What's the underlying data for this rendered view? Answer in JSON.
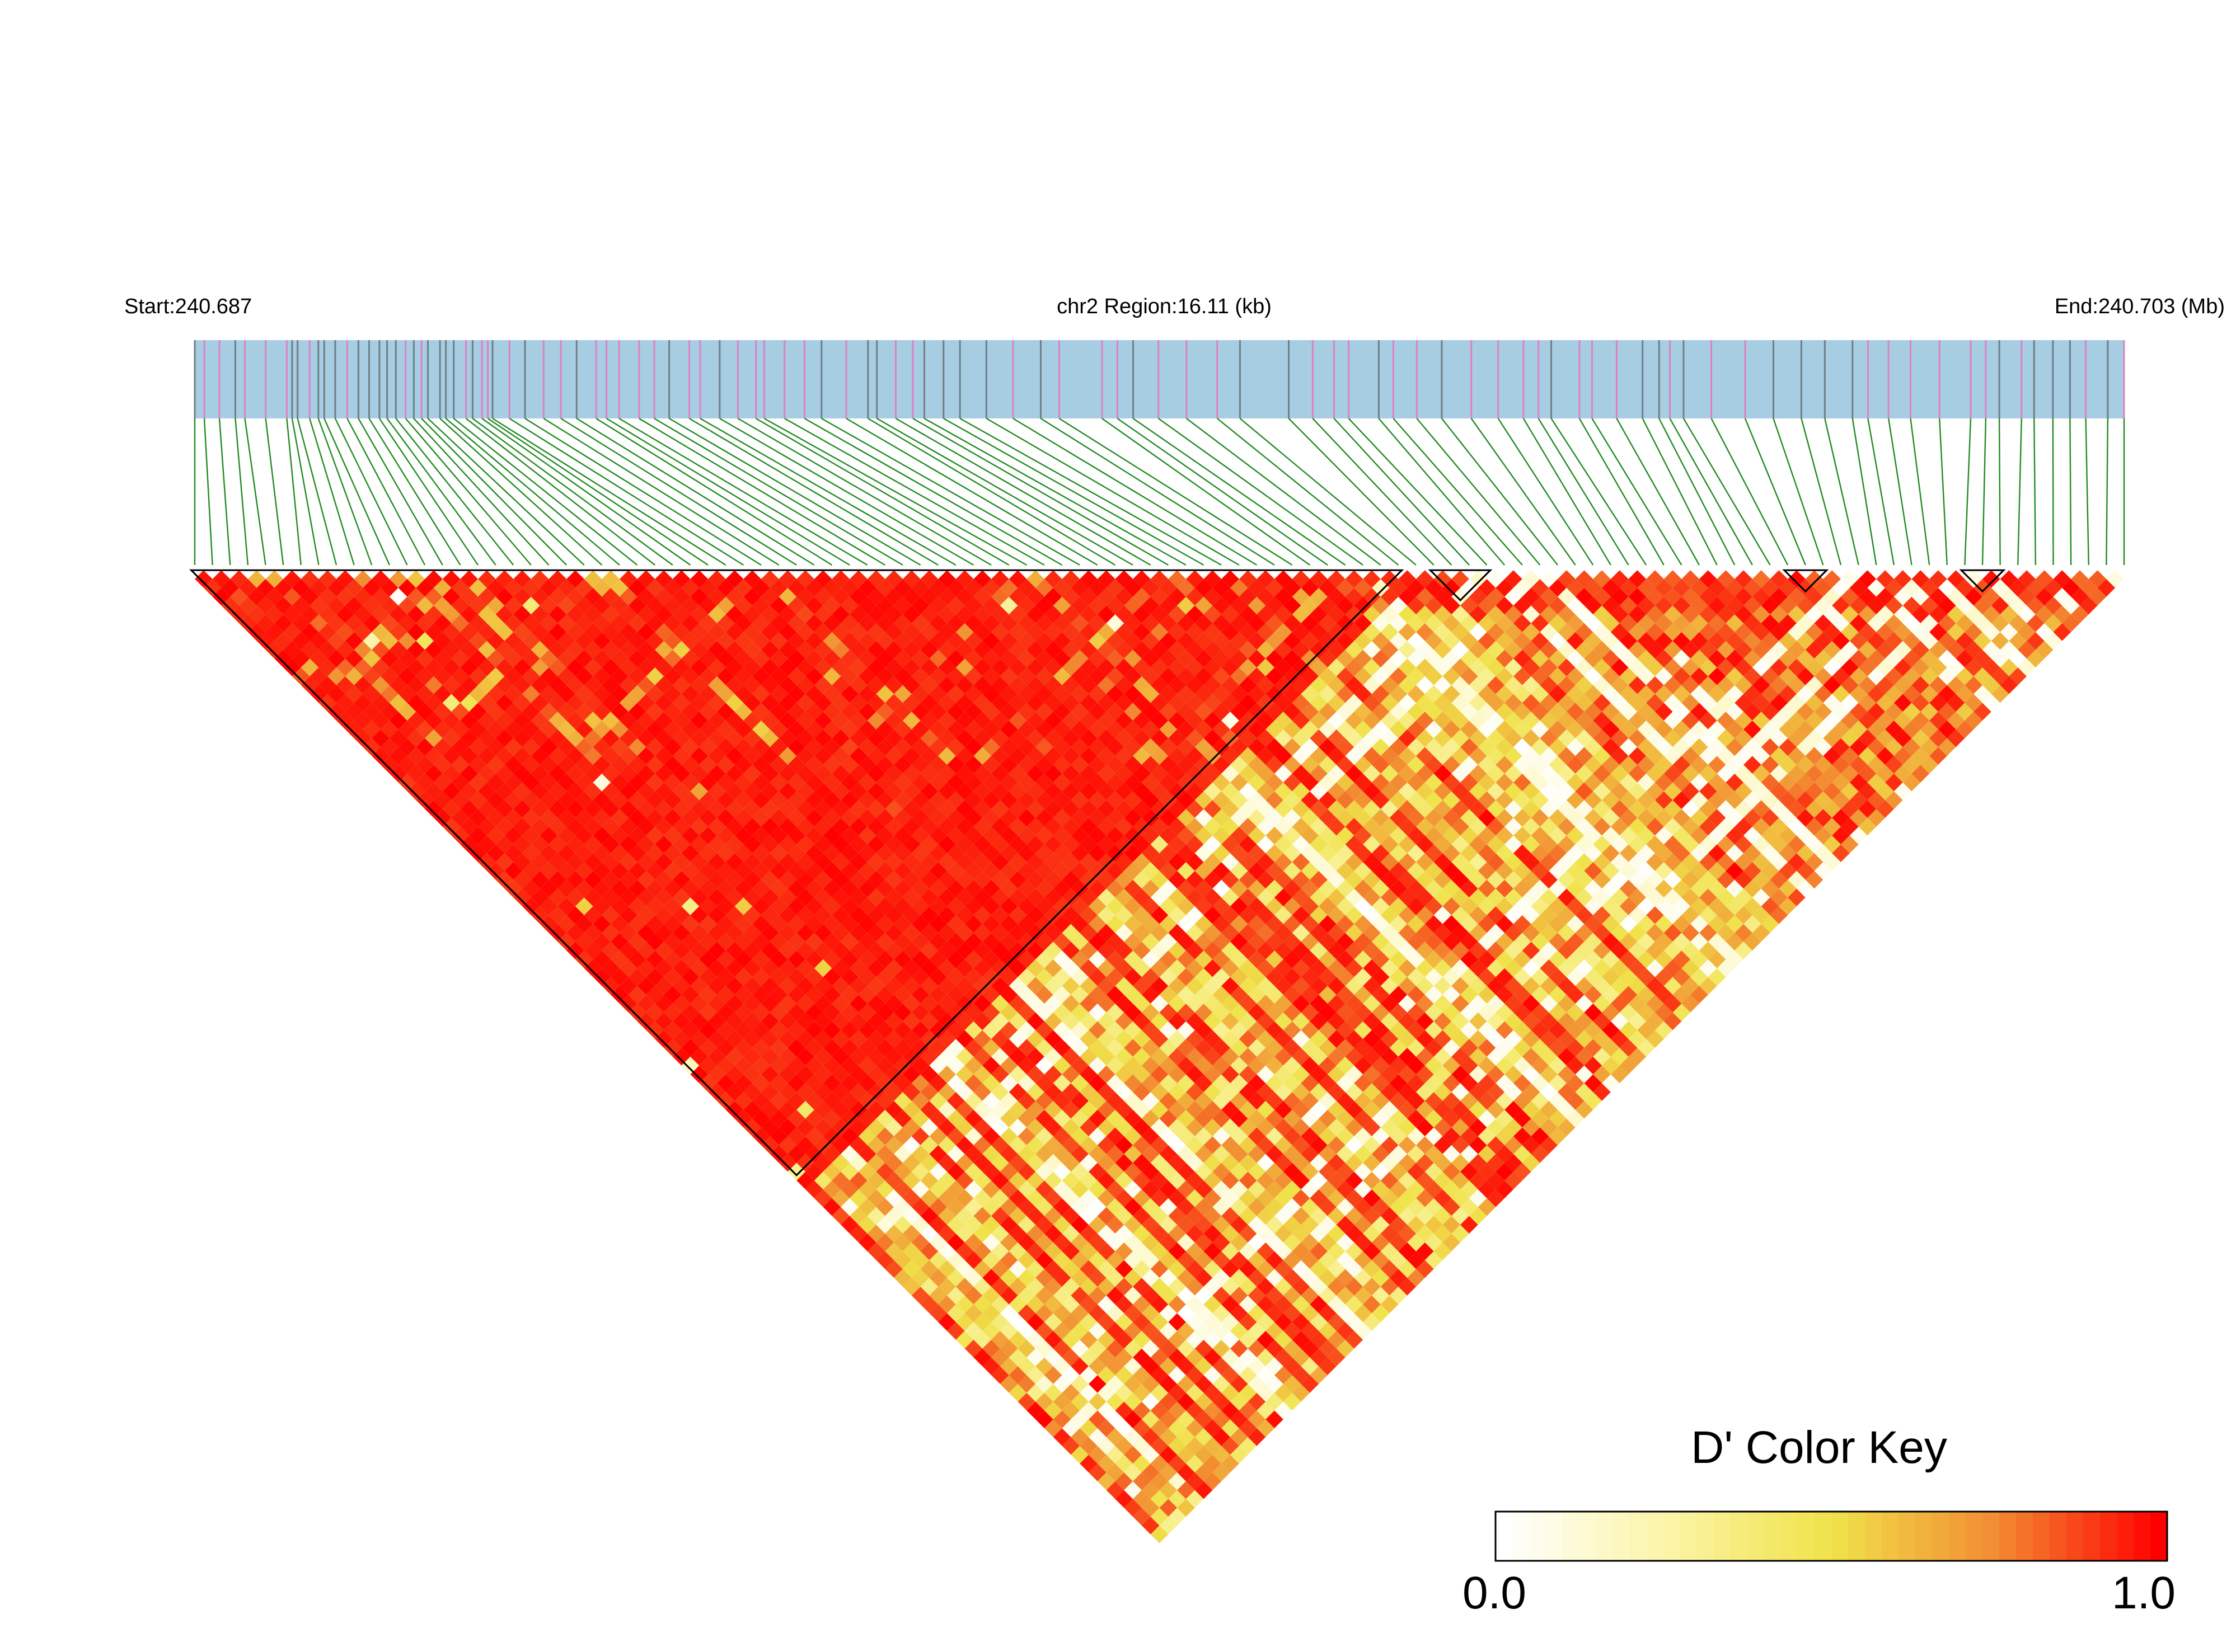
{
  "chart_data": {
    "type": "heatmap",
    "start_label": "Start:240.687",
    "region_label": "chr2 Region:16.11 (kb)",
    "end_label": "End:240.703 (Mb)",
    "snp_count": 110,
    "color_key": {
      "title": "D' Color Key",
      "min_label": "0.0",
      "max_label": "1.0",
      "stops": [
        "#ffffff",
        "#fbf4a6",
        "#f0e24a",
        "#f2a43a",
        "#ff0000"
      ]
    },
    "colors": {
      "gene_track": "#a6cde2",
      "snp_mark": "#e07fc5",
      "snp_mark_alt": "#6f7f86",
      "connector": "#228b22",
      "high_ld": "#ff0000",
      "block_outline": "#000000"
    },
    "haplotype_blocks": [
      {
        "name": "block-1",
        "snp_range": [
          1,
          69
        ]
      },
      {
        "name": "block-2",
        "snp_range": [
          71,
          74
        ]
      },
      {
        "name": "block-3",
        "snp_range": [
          91,
          93
        ]
      },
      {
        "name": "block-4",
        "snp_range": [
          101,
          103
        ]
      }
    ]
  }
}
